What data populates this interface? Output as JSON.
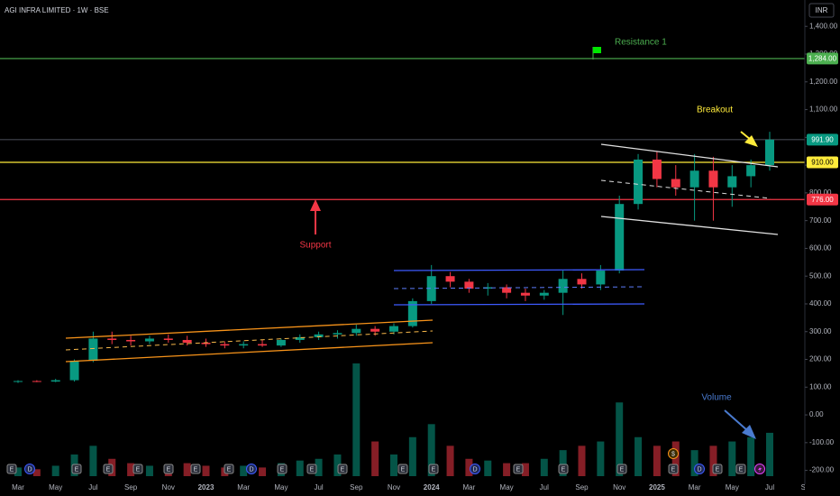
{
  "chart_data": {
    "type": "candlestick",
    "title": "AGI INFRA LIMITED · 1W · BSE",
    "currency": "INR",
    "categories": [
      "Mar",
      null,
      "May",
      null,
      "Jul",
      null,
      "Sep",
      null,
      "Nov",
      null,
      "2023",
      null,
      "Mar",
      null,
      "May",
      null,
      "Jul",
      null,
      "Sep",
      null,
      "Nov",
      null,
      "2024",
      null,
      "Mar",
      null,
      "May",
      null,
      "Jul",
      null,
      "Sep",
      null,
      "Nov",
      null,
      "2025",
      null,
      "Mar",
      null,
      "May",
      null,
      "Jul",
      null,
      "Sep"
    ],
    "open": [
      120,
      122,
      120,
      125,
      195,
      275,
      270,
      265,
      275,
      270,
      260,
      255,
      250,
      255,
      250,
      270,
      280,
      290,
      295,
      310,
      300,
      320,
      410,
      500,
      480,
      455,
      460,
      440,
      430,
      440,
      490,
      470,
      520,
      760,
      920,
      850,
      820,
      880,
      820,
      860,
      900,
      null,
      null
    ],
    "high": [
      125,
      125,
      130,
      200,
      300,
      300,
      285,
      285,
      290,
      285,
      275,
      265,
      265,
      270,
      275,
      290,
      300,
      305,
      325,
      320,
      330,
      420,
      540,
      515,
      490,
      475,
      470,
      455,
      450,
      520,
      510,
      540,
      790,
      940,
      950,
      900,
      940,
      930,
      900,
      920,
      1020,
      null,
      null
    ],
    "low": [
      115,
      118,
      118,
      120,
      190,
      255,
      250,
      255,
      260,
      250,
      245,
      240,
      240,
      245,
      245,
      260,
      270,
      275,
      285,
      285,
      290,
      315,
      400,
      460,
      440,
      430,
      420,
      410,
      415,
      360,
      455,
      450,
      510,
      740,
      820,
      790,
      700,
      700,
      750,
      820,
      880,
      null,
      null
    ],
    "close": [
      122,
      120,
      125,
      195,
      275,
      270,
      265,
      275,
      270,
      260,
      255,
      250,
      255,
      250,
      270,
      280,
      290,
      295,
      310,
      300,
      320,
      410,
      500,
      480,
      455,
      460,
      440,
      430,
      440,
      490,
      470,
      520,
      760,
      920,
      850,
      820,
      880,
      820,
      860,
      900,
      991.9,
      null,
      null
    ],
    "volume": [
      10,
      8,
      12,
      25,
      35,
      20,
      15,
      12,
      10,
      15,
      12,
      10,
      12,
      10,
      15,
      18,
      20,
      25,
      130,
      40,
      25,
      45,
      60,
      35,
      20,
      18,
      15,
      15,
      20,
      30,
      35,
      40,
      85,
      45,
      35,
      40,
      30,
      35,
      40,
      45,
      50,
      null,
      null
    ],
    "up_color": "#089981",
    "down_color": "#f23645",
    "ylim": [
      -250,
      1495
    ],
    "yticks": [
      {
        "value": 1400,
        "label": "1,400.00"
      },
      {
        "value": 1300,
        "label": "1,300.00"
      },
      {
        "value": 1200,
        "label": "1,200.00"
      },
      {
        "value": 1100,
        "label": "1,100.00"
      },
      {
        "value": 1000,
        "label": "1,000.00"
      },
      {
        "value": 900,
        "label": "900.00"
      },
      {
        "value": 800,
        "label": "800.00"
      },
      {
        "value": 700,
        "label": "700.00"
      },
      {
        "value": 600,
        "label": "600.00"
      },
      {
        "value": 500,
        "label": "500.00"
      },
      {
        "value": 400,
        "label": "400.00"
      },
      {
        "value": 300,
        "label": "300.00"
      },
      {
        "value": 200,
        "label": "200.00"
      },
      {
        "value": 100,
        "label": "100.00"
      },
      {
        "value": 0,
        "label": "0.00"
      },
      {
        "value": -100,
        "label": "-100.00"
      },
      {
        "value": -200,
        "label": "-200.00"
      }
    ],
    "levels": [
      {
        "value": 1284,
        "label": "1,284.00",
        "color": "#4caf50"
      },
      {
        "value": 991.9,
        "label": "991.90",
        "color": "#089981"
      },
      {
        "value": 910,
        "label": "910.00",
        "color": "#ffeb3b"
      },
      {
        "value": 776,
        "label": "776.00",
        "color": "#f23645"
      }
    ],
    "annotations": [
      "Resistance 1",
      "Breakout",
      "Support",
      "Volume"
    ],
    "events": [
      "E",
      "D",
      "E",
      "E",
      "E",
      "E",
      "E",
      "E",
      "D",
      "E",
      "E",
      "E",
      "E",
      "E",
      "D",
      "E",
      "E",
      "E",
      "$",
      "E",
      "D",
      "E",
      "E"
    ]
  }
}
